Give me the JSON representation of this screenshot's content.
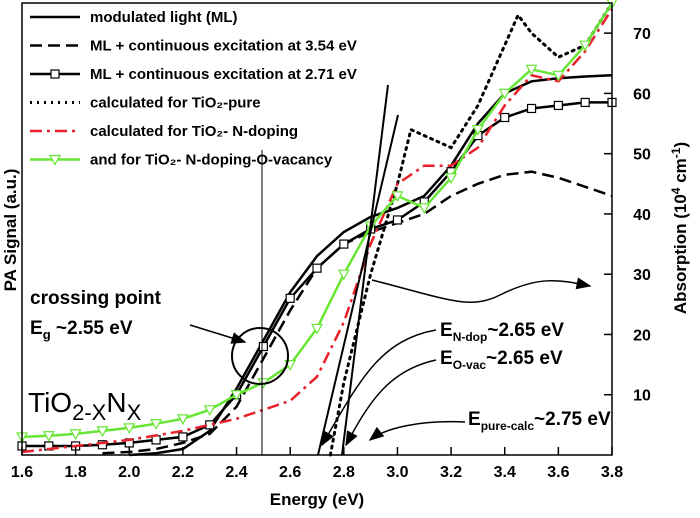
{
  "chart_data": {
    "type": "line",
    "x_label": "Energy (eV)",
    "y_label": "PA Signal (a.u.)",
    "y2_label": {
      "text": "Absorption (10",
      "sup1": "4",
      "mid": " cm",
      "sup2": "-1",
      "end": ")"
    },
    "xlim": [
      1.6,
      3.8
    ],
    "xticks": [
      1.6,
      1.8,
      {
        "value": 2,
        "label": "2.0"
      },
      2.2,
      2.4,
      2.6,
      2.8,
      {
        "value": 3,
        "label": "3.0"
      },
      3.2,
      3.4,
      3.6,
      3.8
    ],
    "ylim": [
      0,
      75
    ],
    "y2lim": [
      0,
      75
    ],
    "y2ticks": [
      10,
      20,
      30,
      40,
      50,
      60,
      70
    ],
    "legend": "upper left",
    "series": [
      {
        "name": "modulated light (ML)",
        "color": "#000000",
        "style": "solid",
        "marker": "none",
        "axis": "y",
        "x": [
          2.0,
          2.1,
          2.2,
          2.3,
          2.4,
          2.5,
          2.6,
          2.7,
          2.8,
          2.9,
          3.0,
          3.1,
          3.2,
          3.3,
          3.4,
          3.5,
          3.6,
          3.7,
          3.8
        ],
        "values": [
          0,
          0.3,
          1,
          4,
          11,
          19,
          27,
          33,
          37,
          39.5,
          41,
          43,
          48,
          55,
          60,
          62,
          62.5,
          62.8,
          63
        ]
      },
      {
        "name": "ML + continuous excitation at 3.54 eV",
        "color": "#000000",
        "style": "dashed",
        "marker": "none",
        "axis": "y",
        "x": [
          1.9,
          2.0,
          2.1,
          2.2,
          2.3,
          2.4,
          2.5,
          2.6,
          2.7,
          2.8,
          2.9,
          3.0,
          3.1,
          3.2,
          3.3,
          3.4,
          3.5,
          3.6,
          3.7,
          3.8
        ],
        "values": [
          0.3,
          0.5,
          1,
          2,
          3.5,
          8,
          16,
          24,
          31,
          35,
          37,
          38.5,
          40,
          43,
          45,
          46.5,
          47,
          46,
          44.5,
          43
        ]
      },
      {
        "name": "ML + continuous excitation at 2.71 eV",
        "color": "#000000",
        "style": "solid",
        "marker": "square",
        "axis": "y",
        "x": [
          1.6,
          1.7,
          1.8,
          1.9,
          2.0,
          2.1,
          2.2,
          2.3,
          2.4,
          2.5,
          2.6,
          2.7,
          2.8,
          2.9,
          3.0,
          3.1,
          3.2,
          3.3,
          3.4,
          3.5,
          3.6,
          3.7,
          3.8
        ],
        "values": [
          1.5,
          1.5,
          1.5,
          1.7,
          2,
          2.5,
          3,
          5,
          10,
          18,
          26,
          31,
          35,
          37.5,
          39,
          42,
          47,
          53,
          56,
          57.5,
          58,
          58.5,
          58.5
        ]
      },
      {
        "name": "calculated for TiO₂-pure",
        "color": "#000000",
        "style": "dotted",
        "marker": "none",
        "axis": "y2",
        "x": [
          2.75,
          2.8,
          2.9,
          3.0,
          3.05,
          3.1,
          3.2,
          3.3,
          3.4,
          3.45,
          3.5,
          3.6,
          3.7,
          3.8
        ],
        "values": [
          0,
          12,
          30,
          45,
          54,
          53,
          51,
          58,
          68,
          73,
          70,
          66,
          68,
          75
        ]
      },
      {
        "name": "calculated for TiO₂- N-doping",
        "color": "#e8202a",
        "style": "dashdot",
        "marker": "none",
        "axis": "y2",
        "x": [
          1.6,
          1.8,
          2.0,
          2.2,
          2.4,
          2.5,
          2.6,
          2.7,
          2.8,
          2.9,
          3.0,
          3.1,
          3.2,
          3.3,
          3.4,
          3.5,
          3.6,
          3.7,
          3.8
        ],
        "values": [
          0.5,
          1.5,
          2.5,
          4,
          6,
          7.5,
          9,
          13,
          22,
          35,
          45,
          48,
          48,
          51,
          58,
          63,
          62,
          67,
          74
        ]
      },
      {
        "name": "and for TiO₂- N-doping-O-vacancy",
        "color": "#66e633",
        "style": "solid",
        "marker": "triangle-down",
        "axis": "y2",
        "x": [
          1.6,
          1.7,
          1.8,
          1.9,
          2.0,
          2.1,
          2.2,
          2.3,
          2.4,
          2.5,
          2.6,
          2.7,
          2.8,
          2.9,
          3.0,
          3.1,
          3.2,
          3.3,
          3.4,
          3.5,
          3.6,
          3.7,
          3.8
        ],
        "values": [
          3,
          3.2,
          3.5,
          4,
          4.5,
          5.2,
          6,
          7.5,
          10,
          12,
          15,
          21,
          30,
          38,
          43,
          41,
          46,
          54,
          60,
          64,
          63,
          68,
          75
        ]
      }
    ],
    "annotations": {
      "crossing": "crossing point",
      "eg": {
        "main": "E",
        "sub": "g",
        "tail": " ~2.55 eV"
      },
      "formula": {
        "a": "TiO",
        "b": "2-X",
        "c": "N",
        "d": "X"
      },
      "endop": {
        "main": "E",
        "sub": "N-dop",
        "tail": "~2.65 eV"
      },
      "eovac": {
        "main": "E",
        "sub": "O-vac",
        "tail": "~2.65 eV"
      },
      "epure": {
        "main": "E",
        "sub": "pure-calc",
        "tail": "~2.75 eV"
      }
    }
  }
}
